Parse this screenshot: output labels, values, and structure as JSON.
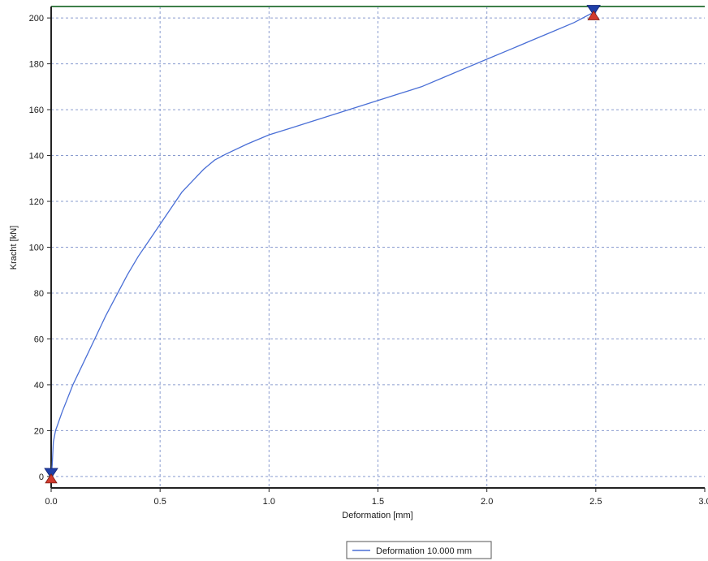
{
  "chart_data": {
    "type": "line",
    "title": "",
    "xlabel": "Deformation [mm]",
    "ylabel": "Kracht [kN]",
    "xlim": [
      0,
      3.0
    ],
    "ylim": [
      -5,
      205
    ],
    "x_ticks": [
      "0.0",
      "0.5",
      "1.0",
      "1.5",
      "2.0",
      "2.5",
      "3.0"
    ],
    "y_ticks": [
      "0",
      "20",
      "40",
      "60",
      "80",
      "100",
      "120",
      "140",
      "160",
      "180",
      "200"
    ],
    "grid": true,
    "legend_position": "bottom",
    "series": [
      {
        "name": "Deformation 10.000 mm",
        "color": "#4a6fd6",
        "points": [
          [
            0.0,
            0
          ],
          [
            0.005,
            5
          ],
          [
            0.01,
            15
          ],
          [
            0.02,
            20
          ],
          [
            0.05,
            28
          ],
          [
            0.1,
            40
          ],
          [
            0.15,
            50
          ],
          [
            0.2,
            60
          ],
          [
            0.25,
            70
          ],
          [
            0.3,
            79
          ],
          [
            0.35,
            88
          ],
          [
            0.4,
            96
          ],
          [
            0.45,
            103
          ],
          [
            0.5,
            110
          ],
          [
            0.55,
            117
          ],
          [
            0.6,
            124
          ],
          [
            0.65,
            129
          ],
          [
            0.7,
            134
          ],
          [
            0.75,
            138
          ],
          [
            0.8,
            140.5
          ],
          [
            0.9,
            145
          ],
          [
            1.0,
            149
          ],
          [
            1.1,
            152
          ],
          [
            1.2,
            155
          ],
          [
            1.3,
            158
          ],
          [
            1.4,
            161
          ],
          [
            1.5,
            164
          ],
          [
            1.6,
            167
          ],
          [
            1.7,
            170
          ],
          [
            1.8,
            174
          ],
          [
            1.9,
            178
          ],
          [
            2.0,
            182
          ],
          [
            2.1,
            186
          ],
          [
            2.2,
            190
          ],
          [
            2.3,
            194
          ],
          [
            2.4,
            198
          ],
          [
            2.48,
            202
          ]
        ]
      }
    ],
    "markers": [
      {
        "name": "start-marker",
        "x": 0.0,
        "y": 0
      },
      {
        "name": "end-marker",
        "x": 2.49,
        "y": 202
      }
    ]
  }
}
